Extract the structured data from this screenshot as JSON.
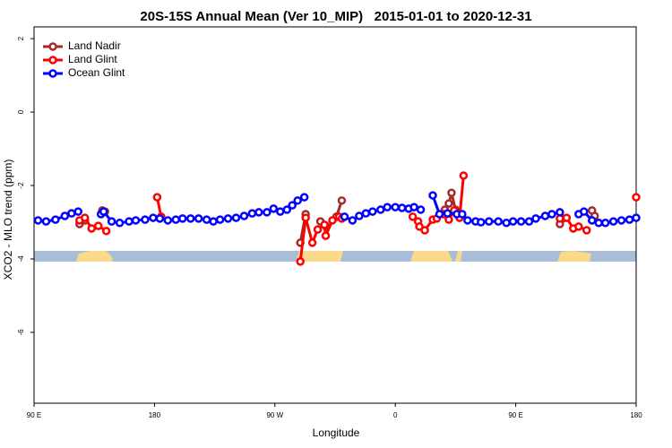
{
  "chart_data": {
    "type": "line",
    "title": "20S-15S Annual Mean (Ver 10_MIP)   2015-01-01 to 2020-12-31",
    "xlabel": "Longitude",
    "ylabel": "XCO2 - MLO trend (ppm)",
    "xlim": [
      90,
      540
    ],
    "xticks": [
      {
        "value": 90,
        "label": "90 E"
      },
      {
        "value": 180,
        "label": "180"
      },
      {
        "value": 270,
        "label": "90 W"
      },
      {
        "value": 360,
        "label": "0"
      },
      {
        "value": 450,
        "label": "90 E"
      },
      {
        "value": 540,
        "label": "180"
      }
    ],
    "ylim": [
      -7.93,
      2.32
    ],
    "yticks": [
      2,
      0,
      -2,
      -4,
      -6
    ],
    "legend": "top-left",
    "series": [
      {
        "name": "Land Nadir",
        "color": "#a52a2a",
        "x": [
          124,
          128,
          130,
          141,
          143,
          200,
          289,
          293,
          300,
          304,
          308,
          310,
          316,
          320,
          350,
          397,
          400,
          402,
          405,
          408,
          450,
          483,
          485,
          490,
          507,
          509
        ],
        "values": [
          -3.05,
          -2.95,
          null,
          -2.68,
          -2.71,
          null,
          -3.56,
          -2.78,
          null,
          -2.98,
          -3.1,
          null,
          -2.85,
          -2.41,
          null,
          -2.66,
          -2.49,
          -2.2,
          -2.66,
          -2.85,
          null,
          -3.05,
          -2.9,
          null,
          -2.68,
          -2.83
        ]
      },
      {
        "name": "Land Glint",
        "color": "#ff0000",
        "x": [
          124,
          128,
          133,
          138,
          144,
          150,
          182,
          185,
          230,
          289,
          293,
          298,
          302,
          307,
          308,
          313,
          318,
          320,
          350,
          373,
          377,
          378,
          382,
          388,
          391,
          396,
          400,
          404,
          408,
          411,
          450,
          483,
          488,
          493,
          497,
          503,
          520,
          540
        ],
        "values": [
          -2.95,
          -2.88,
          -3.17,
          -3.1,
          -3.24,
          null,
          -2.32,
          -2.85,
          null,
          -4.07,
          -2.88,
          -3.56,
          -3.2,
          -3.07,
          -3.37,
          -2.95,
          -2.85,
          -2.9,
          null,
          -2.85,
          -2.98,
          -3.12,
          -3.22,
          -2.93,
          -2.9,
          -2.78,
          -2.93,
          -2.68,
          -2.88,
          -1.73,
          null,
          -2.9,
          -2.88,
          -3.17,
          -3.12,
          -3.22,
          null,
          -2.32
        ]
      },
      {
        "name": "Ocean Glint",
        "color": "#0000ff",
        "x": [
          93,
          99,
          106,
          113,
          118,
          123,
          132,
          140,
          142,
          148,
          154,
          161,
          166,
          173,
          179,
          184,
          190,
          196,
          201,
          207,
          213,
          219,
          224,
          229,
          235,
          241,
          247,
          253,
          258,
          264,
          269,
          274,
          279,
          283,
          287,
          292,
          306,
          322,
          328,
          333,
          338,
          343,
          349,
          354,
          360,
          365,
          370,
          374,
          379,
          384,
          388,
          393,
          399,
          406,
          410,
          414,
          420,
          424,
          430,
          437,
          443,
          448,
          454,
          460,
          465,
          472,
          477,
          483,
          490,
          497,
          501,
          507,
          512,
          517,
          523,
          529,
          535,
          540
        ],
        "values": [
          -2.95,
          -2.98,
          -2.93,
          -2.83,
          -2.76,
          -2.71,
          null,
          -2.78,
          -2.71,
          -2.98,
          -3.02,
          -2.98,
          -2.95,
          -2.93,
          -2.88,
          -2.9,
          -2.95,
          -2.93,
          -2.9,
          -2.9,
          -2.9,
          -2.93,
          -2.98,
          -2.93,
          -2.9,
          -2.88,
          -2.83,
          -2.76,
          -2.73,
          -2.73,
          -2.63,
          -2.71,
          -2.66,
          -2.54,
          -2.41,
          -2.32,
          null,
          -2.85,
          -2.95,
          -2.83,
          -2.76,
          -2.71,
          -2.66,
          -2.59,
          -2.59,
          -2.61,
          -2.63,
          -2.59,
          -2.66,
          null,
          -2.27,
          -2.78,
          -2.76,
          -2.78,
          -2.78,
          -2.95,
          -2.98,
          -3.0,
          -2.98,
          -2.98,
          -3.02,
          -2.98,
          -2.98,
          -2.98,
          -2.9,
          -2.83,
          -2.78,
          -2.73,
          null,
          -2.78,
          -2.71,
          -2.95,
          -3.02,
          -3.02,
          -2.98,
          -2.95,
          -2.93,
          -2.88
        ]
      }
    ]
  }
}
